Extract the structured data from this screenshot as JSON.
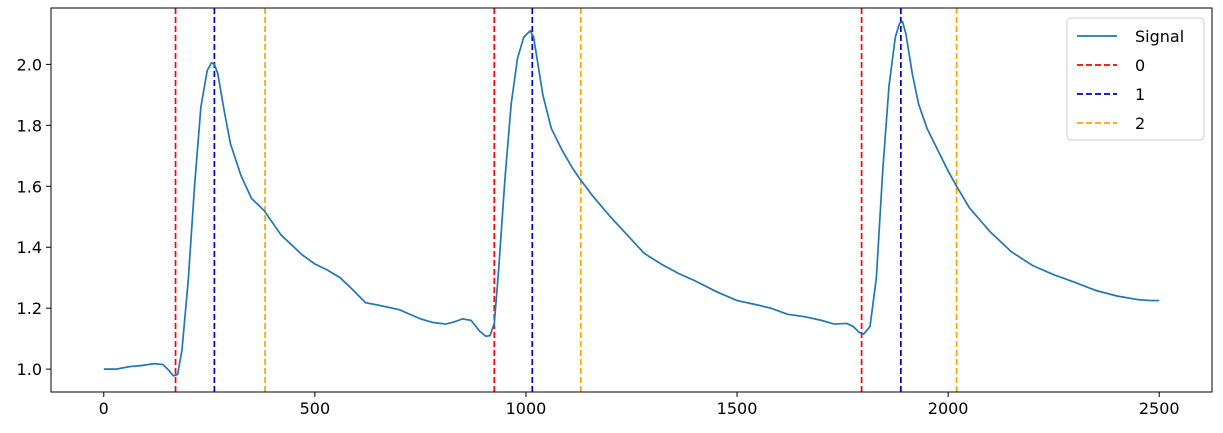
{
  "chart_data": {
    "type": "line",
    "title": "",
    "xlabel": "",
    "ylabel": "",
    "xlim": [
      -125,
      2625
    ],
    "ylim": [
      0.925,
      2.185
    ],
    "xticks": [
      0,
      500,
      1000,
      1500,
      2000,
      2500
    ],
    "yticks": [
      1.0,
      1.2,
      1.4,
      1.6,
      1.8,
      2.0
    ],
    "ytick_labels": [
      "1.0",
      "1.2",
      "1.4",
      "1.6",
      "1.8",
      "2.0"
    ],
    "grid": false,
    "legend_position": "top-right",
    "series": [
      {
        "name": "Signal",
        "color": "#1f77b4",
        "x": [
          0,
          30,
          60,
          90,
          120,
          140,
          155,
          165,
          175,
          185,
          200,
          215,
          230,
          245,
          255,
          262,
          270,
          285,
          300,
          325,
          350,
          380,
          420,
          470,
          500,
          530,
          560,
          590,
          620,
          650,
          700,
          750,
          780,
          810,
          830,
          850,
          870,
          890,
          905,
          915,
          925,
          935,
          950,
          965,
          980,
          995,
          1010,
          1018,
          1025,
          1040,
          1060,
          1085,
          1110,
          1130,
          1160,
          1200,
          1240,
          1280,
          1320,
          1360,
          1400,
          1450,
          1500,
          1550,
          1580,
          1620,
          1660,
          1700,
          1730,
          1760,
          1775,
          1790,
          1800,
          1815,
          1830,
          1845,
          1860,
          1875,
          1885,
          1892,
          1900,
          1915,
          1930,
          1950,
          1975,
          2000,
          2020,
          2050,
          2100,
          2150,
          2200,
          2250,
          2300,
          2350,
          2400,
          2450,
          2480,
          2500
        ],
        "values": [
          1.0,
          1.0,
          1.008,
          1.012,
          1.018,
          1.015,
          0.995,
          0.978,
          0.983,
          1.06,
          1.29,
          1.6,
          1.86,
          1.98,
          2.005,
          2.0,
          1.97,
          1.85,
          1.74,
          1.635,
          1.56,
          1.52,
          1.44,
          1.375,
          1.345,
          1.325,
          1.3,
          1.26,
          1.218,
          1.21,
          1.195,
          1.165,
          1.153,
          1.148,
          1.155,
          1.165,
          1.16,
          1.125,
          1.108,
          1.11,
          1.15,
          1.32,
          1.62,
          1.87,
          2.02,
          2.09,
          2.11,
          2.09,
          2.03,
          1.9,
          1.79,
          1.72,
          1.66,
          1.62,
          1.565,
          1.5,
          1.44,
          1.38,
          1.345,
          1.315,
          1.29,
          1.255,
          1.225,
          1.21,
          1.2,
          1.18,
          1.172,
          1.16,
          1.148,
          1.15,
          1.14,
          1.12,
          1.115,
          1.14,
          1.3,
          1.65,
          1.93,
          2.09,
          2.135,
          2.14,
          2.1,
          1.97,
          1.87,
          1.79,
          1.72,
          1.65,
          1.6,
          1.53,
          1.45,
          1.385,
          1.34,
          1.31,
          1.285,
          1.258,
          1.24,
          1.228,
          1.225,
          1.225
        ]
      },
      {
        "name": "0",
        "color": "#ff0000",
        "style": "dashed",
        "vlines": [
          170,
          925,
          1795
        ]
      },
      {
        "name": "1",
        "color": "#0000cc",
        "style": "dashed",
        "vlines": [
          262,
          1015,
          1888
        ]
      },
      {
        "name": "2",
        "color": "#ffa500",
        "style": "dashed",
        "vlines": [
          382,
          1130,
          2020
        ]
      }
    ]
  }
}
